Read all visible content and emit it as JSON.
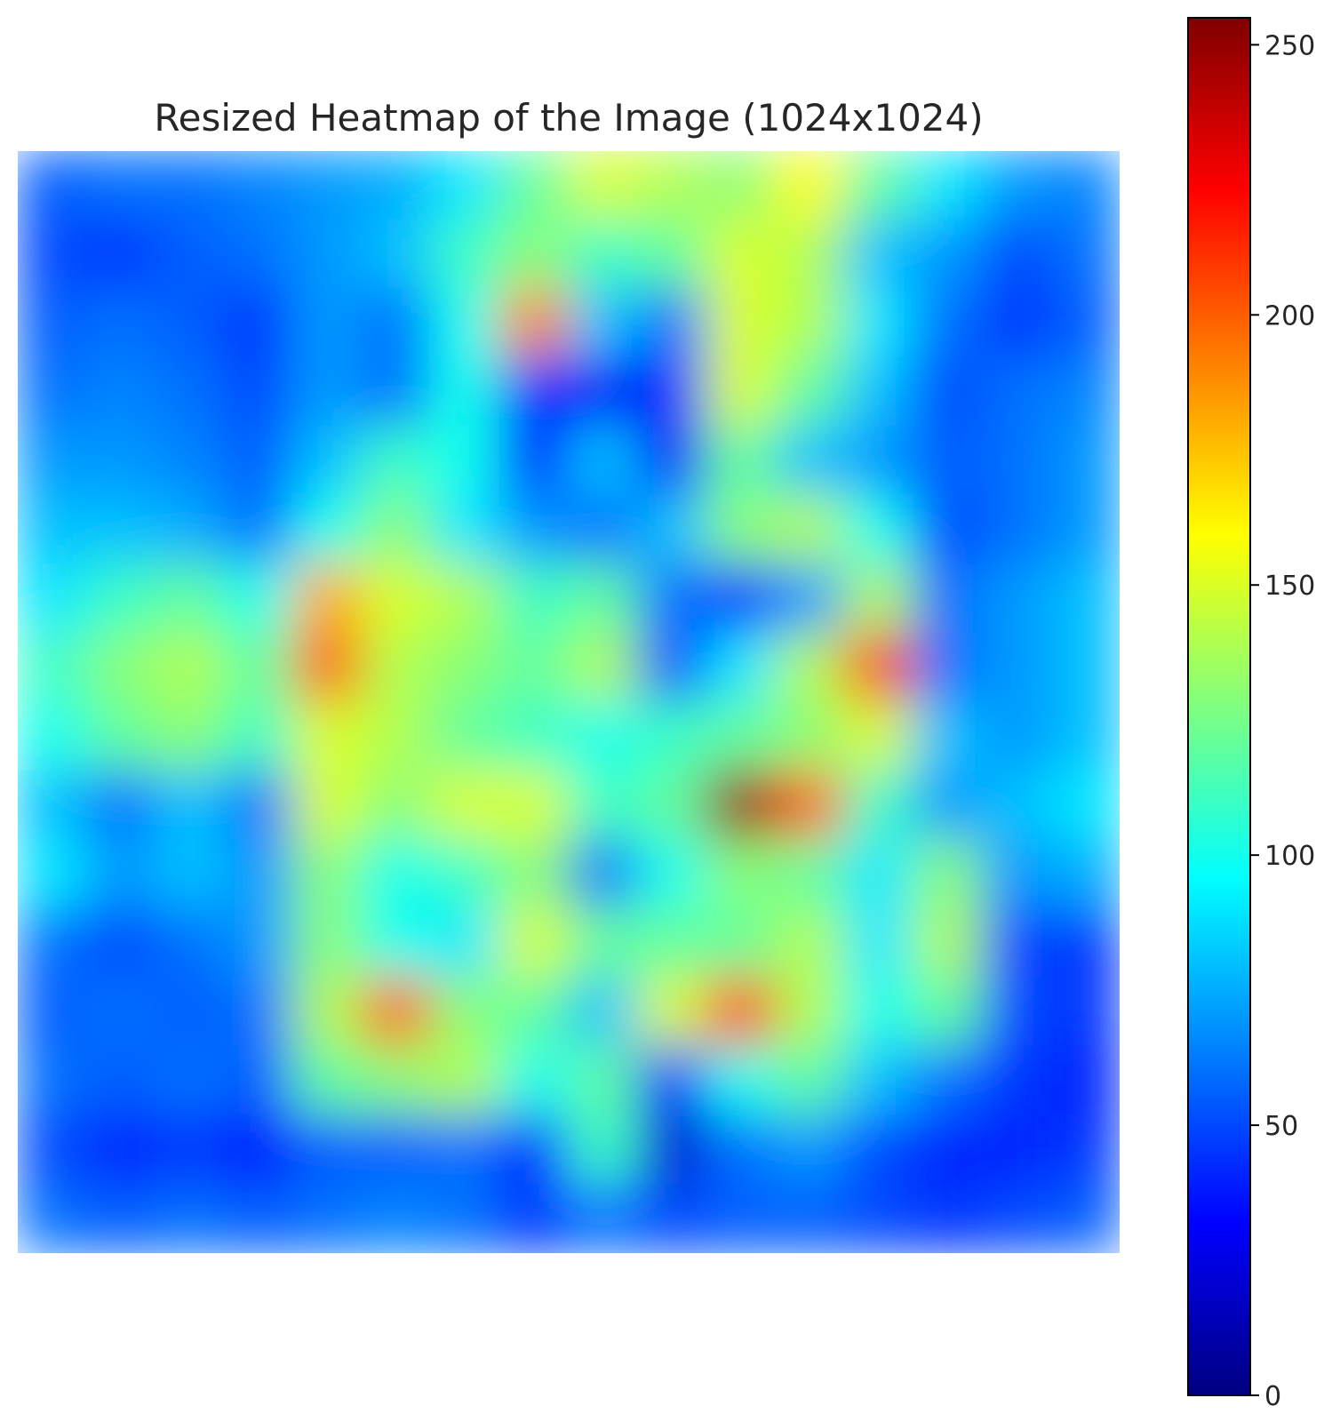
{
  "chart_data": {
    "type": "heatmap",
    "title": "Resized Heatmap of the Image (1024x1024)",
    "xlabel": "",
    "ylabel": "",
    "axes_visible": false,
    "grid": false,
    "colormap": "jet",
    "value_range": [
      0,
      255
    ],
    "colorbar": {
      "placement": "right",
      "ticks": [
        0,
        50,
        100,
        150,
        200,
        250
      ],
      "tick_labels": [
        "0",
        "50",
        "100",
        "150",
        "200",
        "250"
      ]
    },
    "grid_rows": 16,
    "grid_cols": 16,
    "values": [
      [
        55,
        60,
        60,
        65,
        70,
        75,
        90,
        120,
        150,
        140,
        130,
        160,
        120,
        90,
        70,
        65
      ],
      [
        50,
        45,
        55,
        60,
        70,
        80,
        110,
        130,
        110,
        120,
        150,
        140,
        80,
        70,
        50,
        60
      ],
      [
        55,
        60,
        55,
        45,
        70,
        60,
        100,
        190,
        80,
        60,
        150,
        140,
        90,
        60,
        45,
        55
      ],
      [
        60,
        65,
        60,
        50,
        70,
        60,
        100,
        40,
        30,
        40,
        150,
        120,
        80,
        50,
        60,
        65
      ],
      [
        70,
        70,
        65,
        55,
        80,
        110,
        100,
        35,
        80,
        30,
        120,
        80,
        70,
        55,
        60,
        70
      ],
      [
        80,
        80,
        75,
        60,
        100,
        130,
        90,
        70,
        60,
        80,
        130,
        140,
        100,
        50,
        60,
        70
      ],
      [
        90,
        110,
        120,
        100,
        180,
        150,
        140,
        110,
        120,
        60,
        40,
        70,
        140,
        60,
        70,
        80
      ],
      [
        110,
        130,
        140,
        120,
        200,
        140,
        130,
        120,
        140,
        50,
        90,
        140,
        210,
        60,
        70,
        80
      ],
      [
        100,
        120,
        130,
        110,
        150,
        140,
        120,
        110,
        100,
        110,
        120,
        130,
        150,
        80,
        70,
        80
      ],
      [
        80,
        60,
        80,
        60,
        150,
        130,
        150,
        150,
        110,
        120,
        250,
        200,
        110,
        70,
        80,
        90
      ],
      [
        90,
        70,
        80,
        70,
        130,
        100,
        110,
        130,
        60,
        100,
        130,
        120,
        90,
        130,
        70,
        75
      ],
      [
        60,
        50,
        60,
        70,
        130,
        100,
        90,
        150,
        120,
        120,
        120,
        140,
        90,
        140,
        50,
        45
      ],
      [
        55,
        60,
        55,
        60,
        140,
        200,
        130,
        120,
        80,
        150,
        210,
        140,
        100,
        120,
        50,
        45
      ],
      [
        60,
        55,
        60,
        55,
        120,
        130,
        140,
        100,
        120,
        40,
        100,
        120,
        80,
        60,
        45,
        40
      ],
      [
        50,
        40,
        45,
        35,
        55,
        55,
        60,
        40,
        110,
        20,
        60,
        70,
        50,
        40,
        40,
        45
      ],
      [
        60,
        55,
        60,
        55,
        60,
        65,
        60,
        45,
        60,
        50,
        55,
        55,
        50,
        45,
        50,
        55
      ]
    ]
  }
}
